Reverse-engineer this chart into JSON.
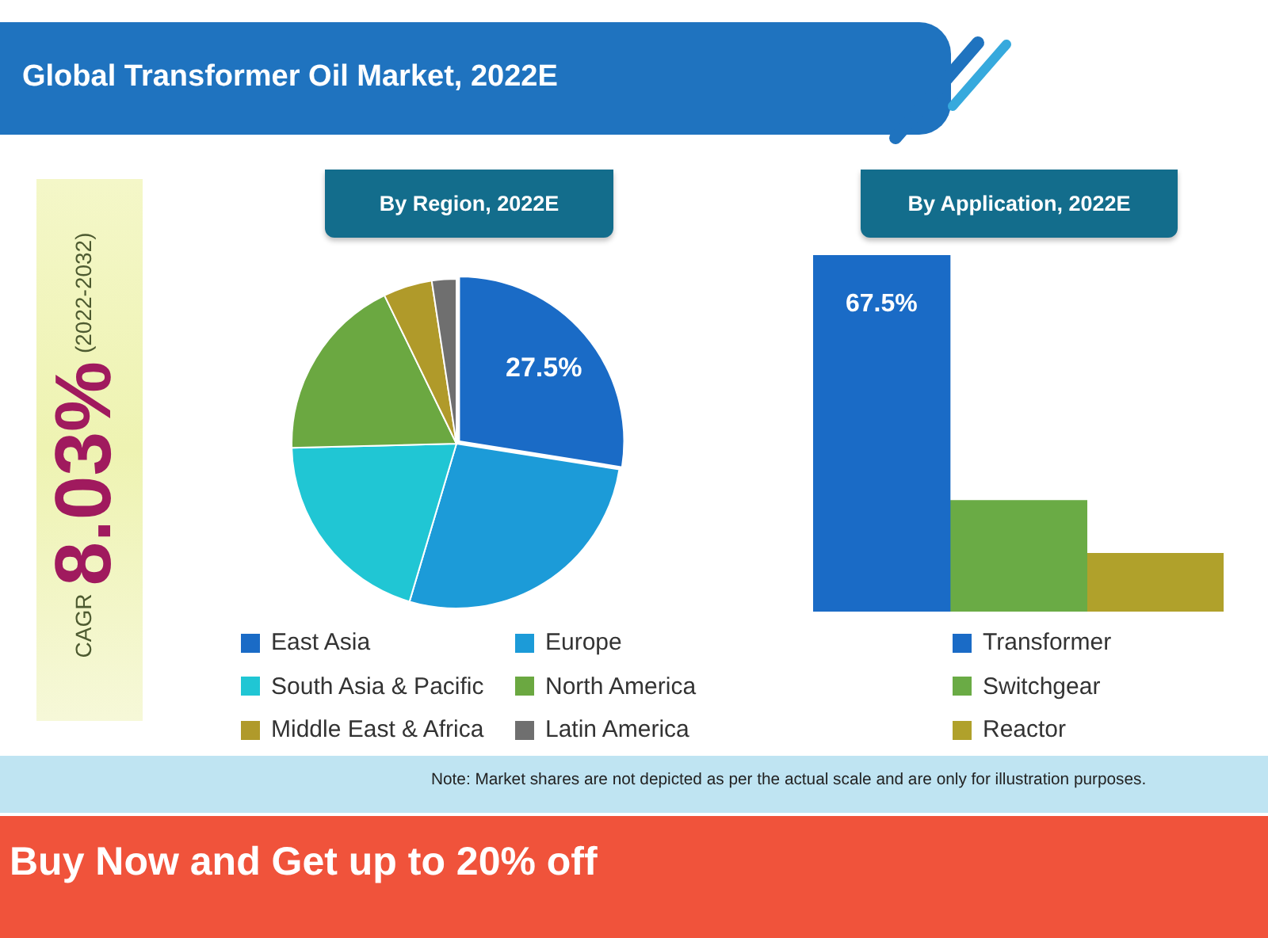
{
  "chart_data": [
    {
      "type": "other",
      "title": "Global Transformer Oil Market, 2022E",
      "annotations": [
        "CAGR",
        "8.03%",
        "(2022-2032)",
        "Note: Market shares are not depicted as per the actual scale and are only for illustration purposes.",
        "Buy Now and Get up to 20% off"
      ]
    },
    {
      "type": "pie",
      "title": "By Region, 2022E",
      "categories": [
        "East Asia",
        "Europe",
        "South Asia & Pacific",
        "North America",
        "Middle East & Africa",
        "Latin America"
      ],
      "values": [
        27.5,
        27.1,
        20,
        18.2,
        4.8,
        2.4
      ],
      "colors": [
        "#1a6bc6",
        "#1c9bd8",
        "#20c6d4",
        "#6ba841",
        "#b09a2a",
        "#6f6f6f"
      ],
      "value_labels": [
        "27.5%",
        null,
        null,
        null,
        null,
        null
      ],
      "legend": "bottom"
    },
    {
      "type": "bar",
      "title": "By Application, 2022E",
      "categories": [
        null
      ],
      "series": [
        {
          "name": "Transformer",
          "color": "#1a6bc6",
          "values": [
            67.5
          ],
          "value_labels": [
            "67.5%"
          ]
        },
        {
          "name": "Switchgear",
          "color": "#6aab45",
          "values": [
            21
          ]
        },
        {
          "name": "Reactor",
          "color": "#b0a12b",
          "values": [
            11
          ]
        }
      ],
      "legend": "bottom",
      "tick_labels": false
    }
  ]
}
